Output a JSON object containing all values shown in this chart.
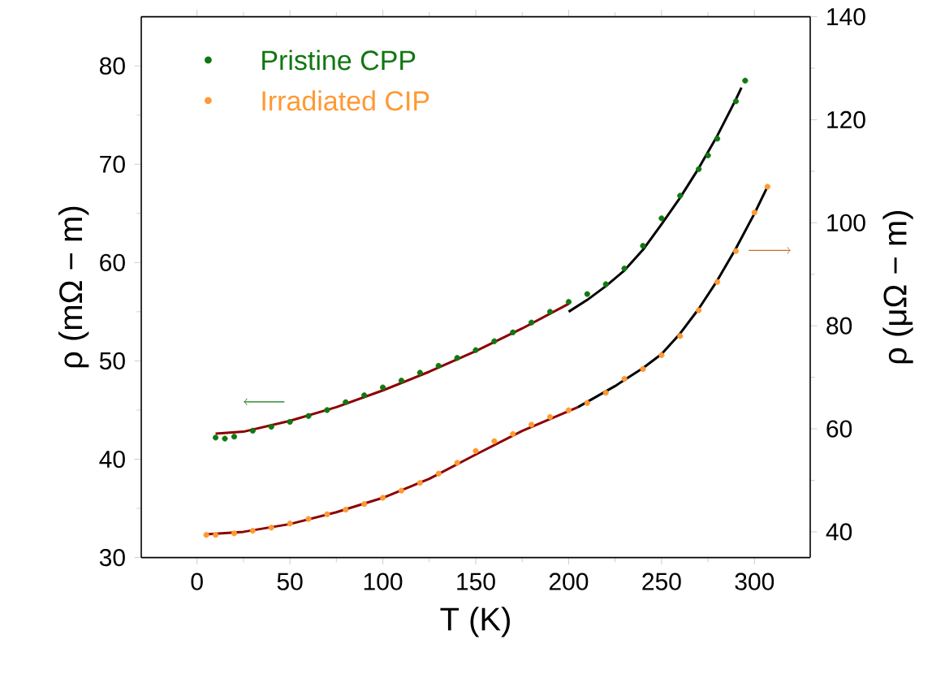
{
  "chart_data": {
    "type": "scatter",
    "xlabel": "T (K)",
    "ylabel": "ρ (mΩ − m)",
    "y2label": "ρ (μΩ − m)",
    "xlim": [
      -30,
      330
    ],
    "ylim": [
      30,
      85
    ],
    "y2lim": [
      35,
      140
    ],
    "xticks": [
      0,
      50,
      100,
      150,
      200,
      250,
      300
    ],
    "yticks": [
      30,
      40,
      50,
      60,
      70,
      80
    ],
    "y2ticks": [
      40,
      60,
      80,
      100,
      120,
      140
    ],
    "legend": "top left",
    "marker": "circle",
    "series": [
      {
        "name": "Pristine CPP",
        "color": "#117711",
        "x": [
          10,
          15,
          20,
          30,
          40,
          50,
          60,
          70,
          80,
          90,
          100,
          110,
          120,
          130,
          140,
          150,
          160,
          170,
          180,
          190,
          200,
          210,
          220,
          230,
          240,
          250,
          260,
          270,
          275,
          280,
          290,
          295
        ],
        "values": [
          42.2,
          42.1,
          42.3,
          42.9,
          43.3,
          43.8,
          44.4,
          45.0,
          45.8,
          46.5,
          47.3,
          48.0,
          48.8,
          49.5,
          50.3,
          51.1,
          52.0,
          52.9,
          53.9,
          55.0,
          56.0,
          56.8,
          57.8,
          59.4,
          61.7,
          64.5,
          66.8,
          69.5,
          70.9,
          72.6,
          76.4,
          78.5
        ]
      },
      {
        "name": "Irradiated CIP",
        "axis": "y2",
        "color": "#ff9933",
        "x": [
          5,
          10,
          20,
          30,
          40,
          50,
          60,
          70,
          80,
          90,
          100,
          110,
          120,
          130,
          140,
          150,
          160,
          170,
          180,
          190,
          200,
          210,
          220,
          230,
          240,
          250,
          260,
          270,
          280,
          290,
          300,
          307
        ],
        "values": [
          39.4,
          39.4,
          39.7,
          40.2,
          40.8,
          41.6,
          42.5,
          43.4,
          44.3,
          45.4,
          46.6,
          48.0,
          49.5,
          51.3,
          53.4,
          55.7,
          57.6,
          59.0,
          60.8,
          62.3,
          63.6,
          65.0,
          67.0,
          69.7,
          71.6,
          74.3,
          78.0,
          83.0,
          88.5,
          94.5,
          102.0,
          107.0
        ]
      },
      {
        "type": "line",
        "marker": "none",
        "color": "#8b0000",
        "x": [
          10,
          25,
          50,
          75,
          100,
          125,
          150,
          175,
          200
        ],
        "values": [
          42.6,
          42.8,
          43.9,
          45.3,
          47.0,
          48.9,
          51.0,
          53.3,
          55.8
        ]
      },
      {
        "type": "line",
        "marker": "none",
        "color": "#000000",
        "x": [
          200,
          210,
          220,
          230,
          240,
          250,
          260,
          270,
          280,
          290,
          293
        ],
        "values": [
          55.0,
          56.2,
          57.6,
          59.2,
          61.3,
          63.9,
          66.6,
          69.6,
          72.9,
          76.6,
          77.8
        ]
      },
      {
        "type": "line",
        "marker": "none",
        "axis": "y2",
        "color": "#8b0000",
        "x": [
          5,
          25,
          50,
          75,
          100,
          125,
          150,
          175,
          205
        ],
        "values": [
          39.5,
          40.0,
          41.5,
          43.8,
          46.6,
          50.3,
          55.0,
          59.6,
          64.2
        ]
      },
      {
        "type": "line",
        "marker": "none",
        "axis": "y2",
        "color": "#000000",
        "x": [
          205,
          225,
          240,
          250,
          260,
          270,
          280,
          290,
          300,
          307
        ],
        "values": [
          64.2,
          68.3,
          71.8,
          74.5,
          78.5,
          83.3,
          88.8,
          95.0,
          101.8,
          107.0
        ]
      }
    ]
  }
}
